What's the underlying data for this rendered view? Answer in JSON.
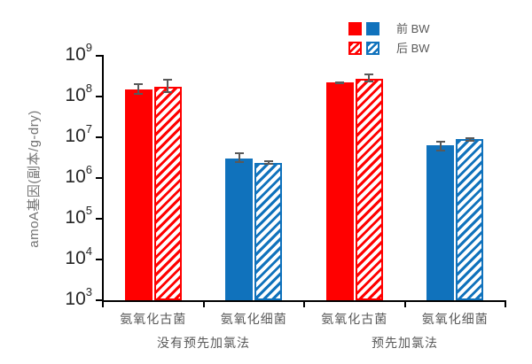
{
  "chart_data": {
    "type": "bar",
    "y_scale": "log",
    "title": "",
    "ylabel": "amoA基因(副本/g-dry)",
    "xlabel": "",
    "ylim": [
      1000.0,
      1000000000.0
    ],
    "y_tick_exponents": [
      3,
      4,
      5,
      6,
      7,
      8,
      9
    ],
    "y_tick_base": "10",
    "grid": "off",
    "legend_position": "top-right",
    "categories": [
      "氨氧化古菌",
      "氨氧化细菌",
      "氨氧化古菌",
      "氨氧化细菌"
    ],
    "category_colors": [
      "#FF0000",
      "#1072BC",
      "#FF0000",
      "#1072BC"
    ],
    "group_labels": [
      {
        "label": "没有预先加氯法",
        "span": [
          0,
          1
        ]
      },
      {
        "label": "预先加氯法",
        "span": [
          2,
          3
        ]
      }
    ],
    "series": [
      {
        "name": "前 BW",
        "style": "solid",
        "values": [
          150000000.0,
          3000000.0,
          220000000.0,
          6500000.0
        ],
        "err_hi": [
          210000000.0,
          4300000.0,
          240000000.0,
          8300000.0
        ],
        "err_lo": [
          110000000.0,
          2400000.0,
          200000000.0,
          4400000.0
        ]
      },
      {
        "name": "后 BW",
        "style": "hatched",
        "values": [
          170000000.0,
          2400000.0,
          275000000.0,
          9000000.0
        ],
        "err_hi": [
          270000000.0,
          2700000.0,
          360000000.0,
          9800000.0
        ],
        "err_lo": [
          120000000.0,
          2100000.0,
          220000000.0,
          7900000.0
        ]
      }
    ],
    "legend": [
      {
        "label": "前 BW",
        "style": "solid"
      },
      {
        "label": "后 BW",
        "style": "hatched"
      }
    ],
    "colors": {
      "red": "#FF0000",
      "blue": "#1072BC",
      "error_bar": "#595959",
      "axis": "#000000",
      "tick_text": "#262626",
      "label_text": "#595959",
      "axis_title_text": "#737373",
      "background": "#FFFFFF"
    }
  }
}
